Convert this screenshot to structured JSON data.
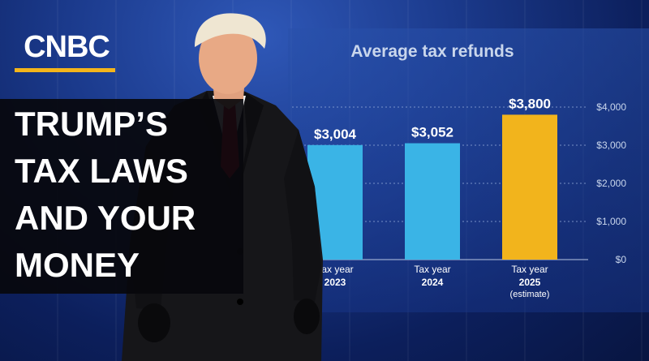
{
  "brand": {
    "logo_text": "CNBC",
    "accent_color": "#f4b51b"
  },
  "headline": {
    "lines": [
      "TRUMP’S",
      "TAX LAWS",
      "AND YOUR",
      "MONEY"
    ]
  },
  "chart_data": {
    "type": "bar",
    "title": "Average tax refunds",
    "categories": [
      {
        "line1": "Tax year",
        "line2": "2023",
        "line3": ""
      },
      {
        "line1": "Tax year",
        "line2": "2024",
        "line3": ""
      },
      {
        "line1": "Tax year",
        "line2": "2025",
        "line3": "(estimate)"
      }
    ],
    "values": [
      3004,
      3052,
      3800
    ],
    "value_labels": [
      "$3,004",
      "$3,052",
      "$3,800"
    ],
    "bar_colors": [
      "#3ab4e6",
      "#3ab4e6",
      "#f2b41c"
    ],
    "ylim": [
      0,
      4000
    ],
    "yticks": [
      0,
      1000,
      2000,
      3000,
      4000
    ],
    "ytick_labels": [
      "$0",
      "$1,000",
      "$2,000",
      "$3,000",
      "$4,000"
    ],
    "grid": true,
    "y_axis_side": "right"
  }
}
